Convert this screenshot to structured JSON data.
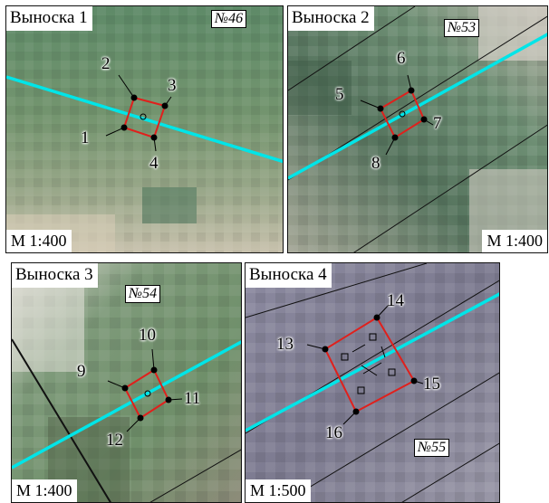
{
  "colors": {
    "parcel_line": "#00e5e8",
    "contour": "#e0201c",
    "border": "#111111"
  },
  "panels": [
    {
      "title": "Выноска 1",
      "scale": "М 1:400",
      "plot": "№46",
      "points": [
        "1",
        "2",
        "3",
        "4"
      ]
    },
    {
      "title": "Выноска 2",
      "scale": "М 1:400",
      "plot": "№53",
      "points": [
        "5",
        "6",
        "7",
        "8"
      ]
    },
    {
      "title": "Выноска 3",
      "scale": "М 1:400",
      "plot": "№54",
      "points": [
        "9",
        "10",
        "11",
        "12"
      ]
    },
    {
      "title": "Выноска 4",
      "scale": "М 1:500",
      "plot": "№55",
      "points": [
        "13",
        "14",
        "15",
        "16"
      ]
    }
  ]
}
